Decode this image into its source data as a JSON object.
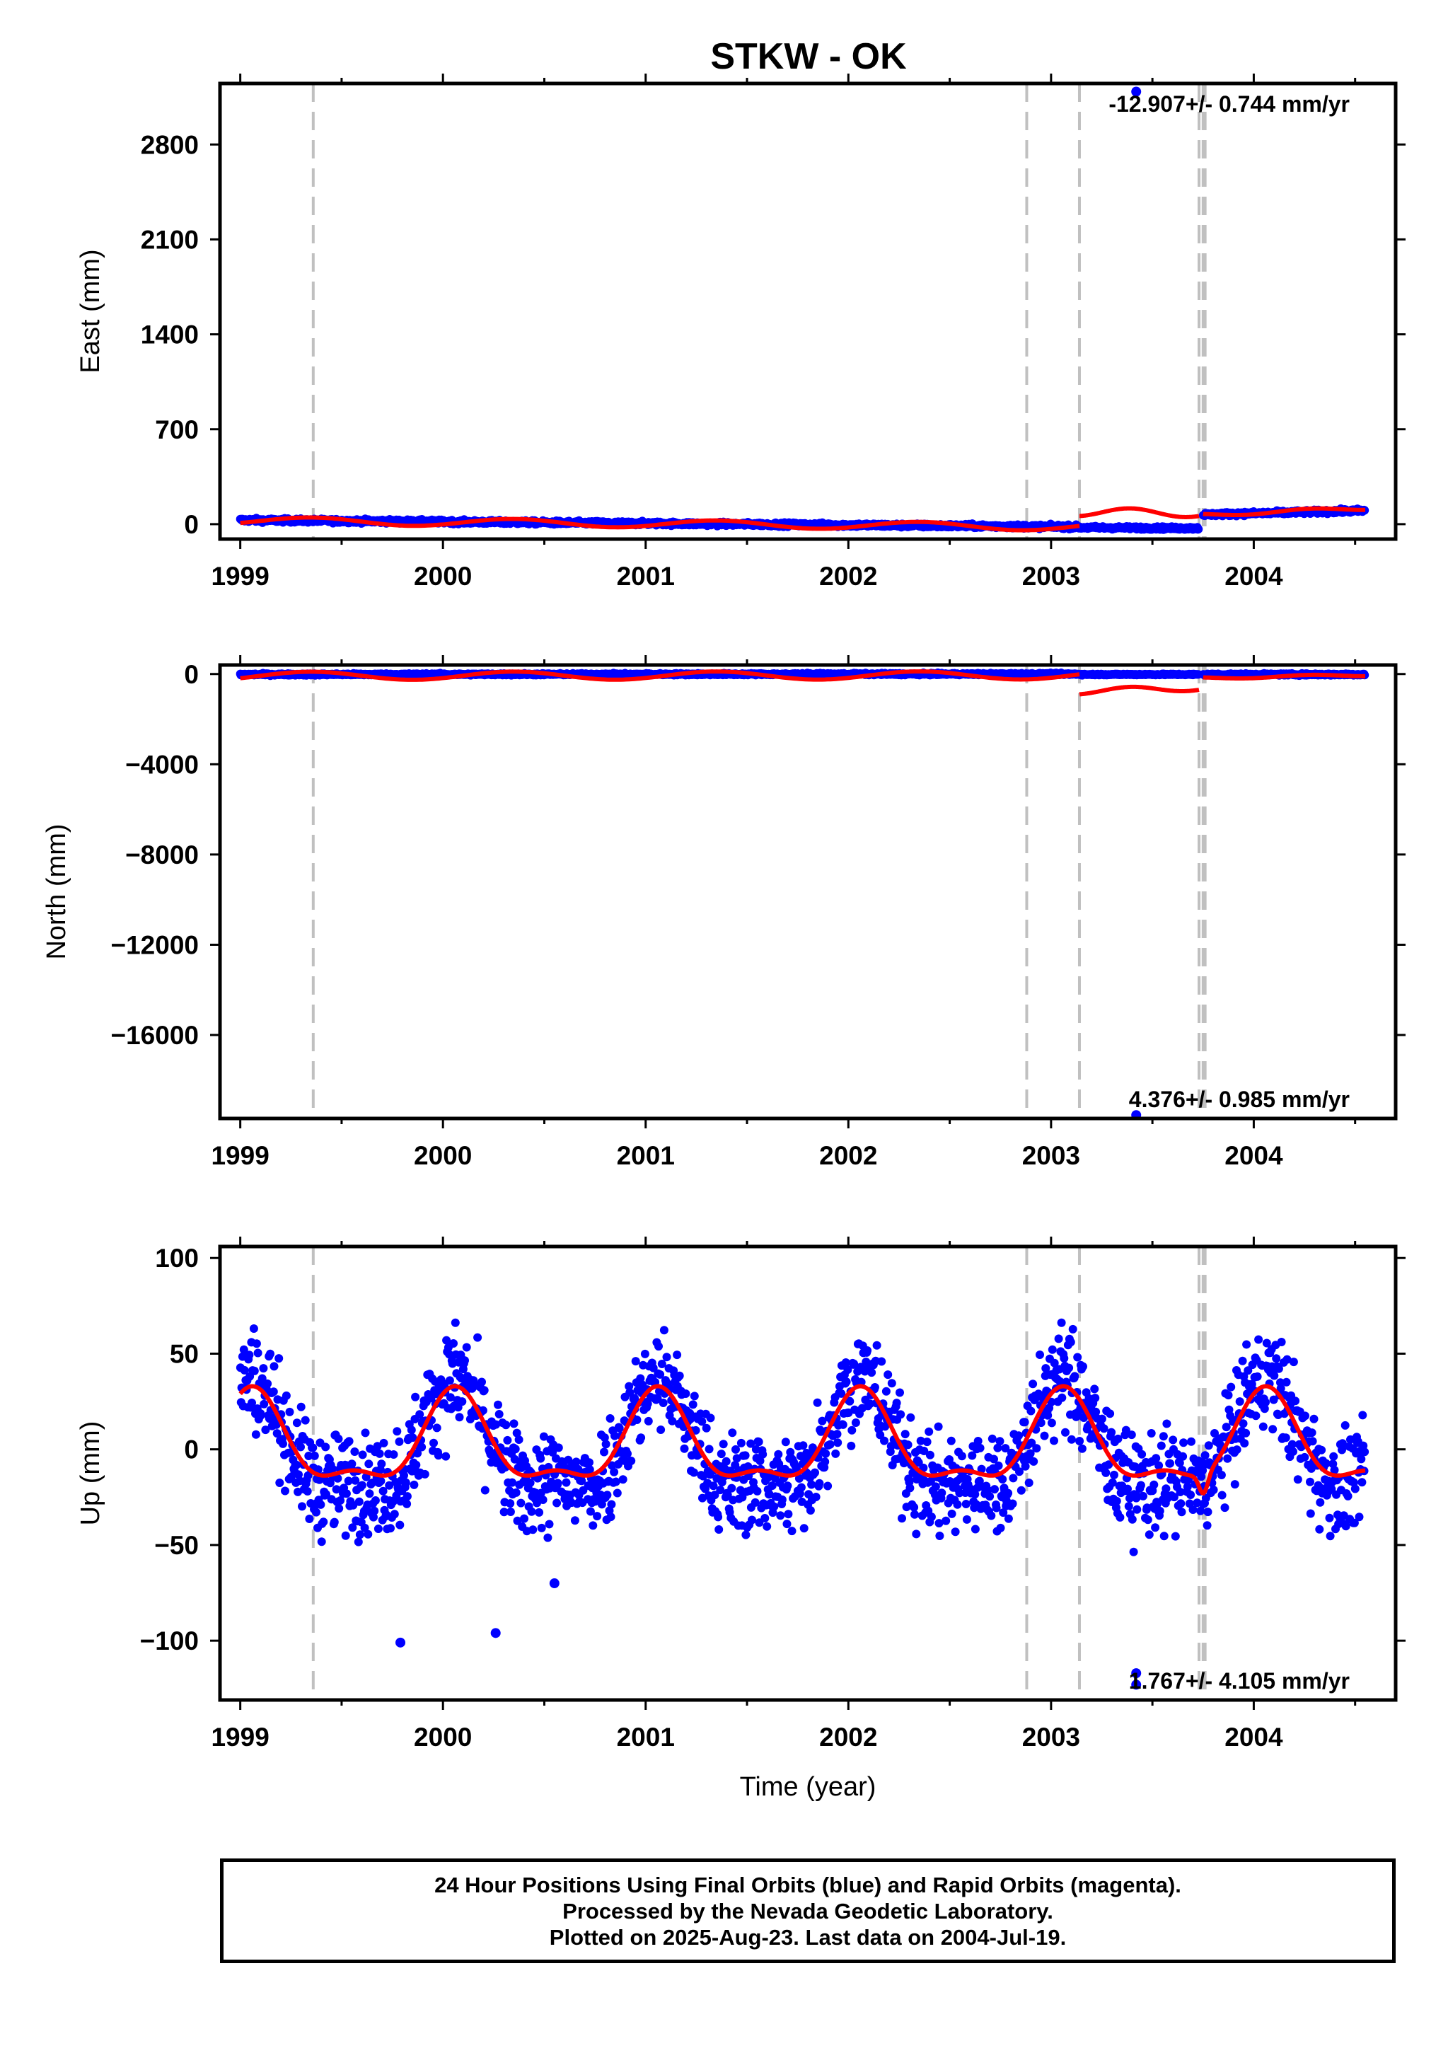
{
  "title": "STKW - OK",
  "colors": {
    "final": "#0000ff",
    "model": "#ff0000",
    "offset_line": "#c0c0c0",
    "frame": "#000000"
  },
  "chart_data": [
    {
      "type": "scatter",
      "title": "STKW - OK",
      "ylabel": "East (mm)",
      "xlabel": "",
      "xlim": [
        1998.9,
        2004.7
      ],
      "ylim": [
        -110,
        3250
      ],
      "yticks": [
        0,
        700,
        1400,
        2100,
        2800
      ],
      "xticks": [
        1999,
        2000,
        2001,
        2002,
        2003,
        2004
      ],
      "rate_label": "-12.907+/- 0.744 mm/yr",
      "offset_lines": [
        1999.36,
        2002.88,
        2003.14,
        2003.73,
        2003.75,
        2003.76
      ],
      "outliers": [
        {
          "x": 2003.42,
          "y": 3190
        }
      ],
      "series": [
        {
          "name": "",
          "kind": "points",
          "segments": [
            {
              "x0": 1999.0,
              "x1": 2003.14,
              "v0": 30,
              "v1": -20,
              "noise": 10
            },
            {
              "x0": 2003.14,
              "x1": 2003.73,
              "v0": -25,
              "v1": -30,
              "noise": 8
            },
            {
              "x0": 2003.75,
              "x1": 2004.55,
              "v0": 70,
              "v1": 100,
              "noise": 10
            }
          ]
        },
        {
          "name": "",
          "kind": "model",
          "segments": [
            {
              "x0": 1999.0,
              "x1": 2003.14,
              "v0": 25,
              "v1": -20,
              "amp": 28
            },
            {
              "x0": 2003.14,
              "x1": 2003.73,
              "v0": 60,
              "v1": 60,
              "amp": 60
            },
            {
              "x0": 2003.75,
              "x1": 2004.55,
              "v0": 75,
              "v1": 105,
              "amp": 25
            }
          ]
        }
      ]
    },
    {
      "type": "scatter",
      "ylabel": "North (mm)",
      "xlabel": "",
      "xlim": [
        1998.9,
        2004.7
      ],
      "ylim": [
        -19700,
        400
      ],
      "yticks": [
        0,
        -4000,
        -8000,
        -12000,
        -16000
      ],
      "xticks": [
        1999,
        2000,
        2001,
        2002,
        2003,
        2004
      ],
      "rate_label": "4.376+/- 0.985 mm/yr",
      "offset_lines": [
        1999.36,
        2002.88,
        2003.14,
        2003.73,
        2003.75,
        2003.76
      ],
      "outliers": [
        {
          "x": 2003.42,
          "y": -19550
        }
      ],
      "series": [
        {
          "name": "",
          "kind": "points",
          "segments": [
            {
              "x0": 1999.0,
              "x1": 2003.14,
              "v0": -20,
              "v1": 0,
              "noise": 30
            },
            {
              "x0": 2003.14,
              "x1": 2003.73,
              "v0": -20,
              "v1": -20,
              "noise": 20
            },
            {
              "x0": 2003.75,
              "x1": 2004.55,
              "v0": -20,
              "v1": -20,
              "noise": 30
            }
          ]
        },
        {
          "name": "",
          "kind": "model",
          "segments": [
            {
              "x0": 1999.0,
              "x1": 2003.14,
              "v0": -80,
              "v1": -60,
              "amp": 180
            },
            {
              "x0": 2003.14,
              "x1": 2003.73,
              "v0": -900,
              "v1": -700,
              "amp": 260
            },
            {
              "x0": 2003.75,
              "x1": 2004.55,
              "v0": -150,
              "v1": -100,
              "amp": 100
            }
          ]
        }
      ]
    },
    {
      "type": "scatter",
      "ylabel": "Up (mm)",
      "xlabel": "Time (year)",
      "xlim": [
        1998.9,
        2004.7
      ],
      "ylim": [
        -131,
        106
      ],
      "yticks": [
        100,
        50,
        0,
        -50,
        -100
      ],
      "xticks": [
        1999,
        2000,
        2001,
        2002,
        2003,
        2004
      ],
      "rate_label": "1.767+/- 4.105 mm/yr",
      "offset_lines": [
        1999.36,
        2002.88,
        2003.14,
        2003.73,
        2003.75,
        2003.76
      ],
      "outliers": [
        {
          "x": 1999.79,
          "y": -101
        },
        {
          "x": 2000.26,
          "y": -96
        },
        {
          "x": 2000.55,
          "y": -70
        },
        {
          "x": 2003.42,
          "y": -117
        },
        {
          "x": 2003.42,
          "y": -123
        }
      ],
      "series": [
        {
          "name": "",
          "kind": "points",
          "annual_amp": 27,
          "annual_peak": 0.06,
          "mean": 12,
          "noise": 19,
          "x0": 1999.0,
          "x1": 2004.55
        },
        {
          "name": "",
          "kind": "model",
          "annual_amp": 22,
          "semi_amp": 9,
          "mean": 12,
          "x0": 1999.0,
          "x1": 2004.55,
          "dips": [
            {
              "x": 2003.75,
              "y": -23
            }
          ]
        }
      ]
    }
  ],
  "footer": {
    "line1": "24 Hour Positions Using Final Orbits (blue) and Rapid Orbits (magenta).",
    "line2": "Processed by the Nevada Geodetic Laboratory.",
    "line3": "Plotted on 2025-Aug-23. Last data on 2004-Jul-19."
  }
}
